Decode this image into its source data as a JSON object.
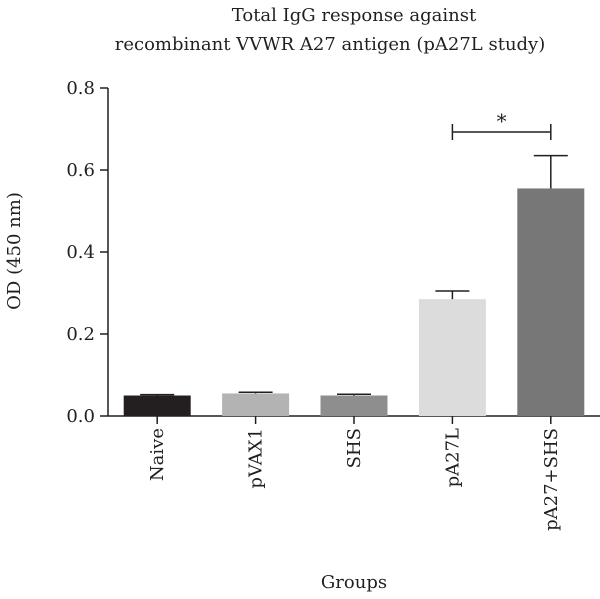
{
  "chart_data": {
    "type": "bar",
    "title": "Total IgG response against recombinant VVWR A27 antigen (pA27L study)",
    "title_lines": [
      "Total IgG response against",
      "recombinant VVWR A27 antigen (pA27L study)"
    ],
    "xlabel": "Groups",
    "ylabel": "OD (450 nm)",
    "ylim": [
      0,
      0.8
    ],
    "yticks": [
      "0.0",
      "0.2",
      "0.4",
      "0.6",
      "0.8"
    ],
    "categories": [
      "Naive",
      "pVAX1",
      "SHS",
      "pA27L",
      "pA27+SHS"
    ],
    "values": [
      0.05,
      0.055,
      0.05,
      0.285,
      0.555
    ],
    "errors": [
      0.002,
      0.003,
      0.003,
      0.02,
      0.08
    ],
    "colors": [
      "#231f20",
      "#b3b3b3",
      "#8e8e8e",
      "#dcdcdc",
      "#777777"
    ],
    "annotations": [
      {
        "text": "*",
        "between": [
          "pA27L",
          "pA27+SHS"
        ]
      }
    ],
    "grid": false,
    "legend": "none"
  }
}
